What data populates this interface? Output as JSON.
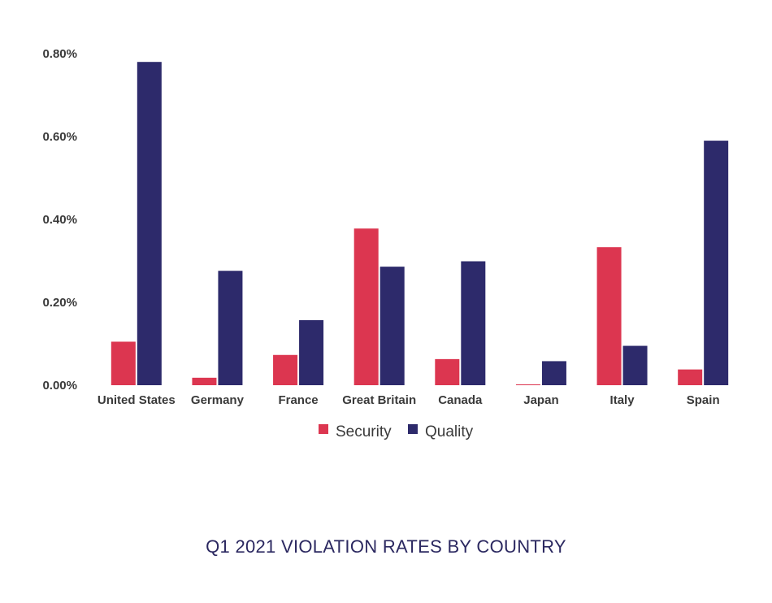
{
  "chart_data": {
    "type": "bar",
    "categories": [
      "United States",
      "Germany",
      "France",
      "Great Britain",
      "Canada",
      "Japan",
      "Italy",
      "Spain"
    ],
    "series": [
      {
        "name": "Security",
        "color": "#dc3650",
        "values": [
          0.105,
          0.018,
          0.073,
          0.378,
          0.063,
          0.002,
          0.333,
          0.038
        ]
      },
      {
        "name": "Quality",
        "color": "#2d2a6b",
        "values": [
          0.78,
          0.276,
          0.157,
          0.286,
          0.299,
          0.058,
          0.095,
          0.59
        ]
      }
    ],
    "yticks": [
      "0.00%",
      "0.20%",
      "0.40%",
      "0.60%",
      "0.80%"
    ],
    "ytick_values": [
      0,
      0.2,
      0.4,
      0.6,
      0.8
    ],
    "ylim": [
      0,
      0.8
    ],
    "legend_position": "bottom-center",
    "grid": false
  },
  "caption": "Q1 2021 VIOLATION RATES BY COUNTRY"
}
